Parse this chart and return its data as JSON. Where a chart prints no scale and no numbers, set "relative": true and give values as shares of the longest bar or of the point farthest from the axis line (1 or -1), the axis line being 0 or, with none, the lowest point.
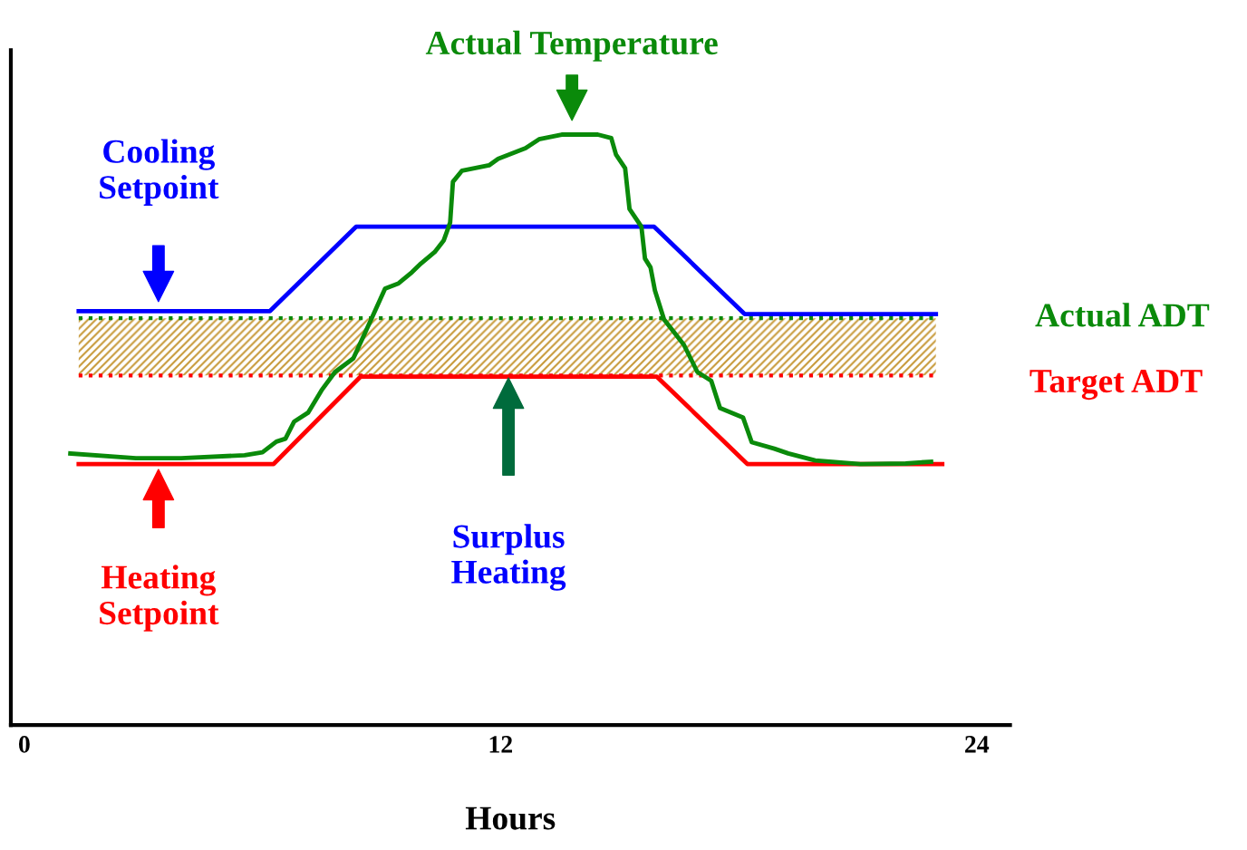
{
  "chart_data": {
    "type": "line",
    "relative": true,
    "xlabel": "Hours",
    "xlim": [
      -0.34,
      24.84
    ],
    "xticks": [
      0,
      12,
      24
    ],
    "grid": false,
    "marker": "none",
    "line_style": "solid",
    "series": [
      {
        "name": "Cooling Setpoint",
        "color": "#0000ff",
        "x": [
          1.37,
          6.19,
          8.36,
          15.87,
          18.15,
          22.97
        ],
        "values": [
          0.701,
          0.701,
          0.844,
          0.844,
          0.696,
          0.696
        ]
      },
      {
        "name": "Heating Setpoint",
        "color": "#ff0000",
        "x": [
          1.37,
          6.28,
          8.47,
          15.94,
          18.22,
          23.13
        ],
        "values": [
          0.442,
          0.442,
          0.59,
          0.59,
          0.442,
          0.442
        ]
      },
      {
        "name": "Actual Temperature",
        "color": "#0a8a0a",
        "x": [
          1.16,
          2.81,
          3.95,
          5.55,
          6.0,
          6.35,
          6.58,
          6.8,
          7.15,
          7.49,
          7.83,
          8.29,
          8.74,
          9.09,
          9.43,
          9.77,
          10.0,
          10.34,
          10.57,
          10.73,
          10.8,
          11.03,
          11.71,
          11.94,
          12.63,
          12.97,
          13.54,
          14.45,
          14.79,
          14.91,
          15.14,
          15.25,
          15.55,
          15.64,
          15.78,
          15.89,
          16.12,
          16.62,
          16.96,
          17.31,
          17.53,
          18.11,
          18.33,
          18.9,
          19.25,
          19.93,
          21.07,
          22.21,
          22.85
        ],
        "values": [
          0.46,
          0.452,
          0.452,
          0.457,
          0.462,
          0.48,
          0.485,
          0.514,
          0.529,
          0.567,
          0.598,
          0.621,
          0.687,
          0.739,
          0.748,
          0.767,
          0.782,
          0.801,
          0.821,
          0.851,
          0.92,
          0.939,
          0.948,
          0.959,
          0.977,
          0.992,
          1.0,
          1.0,
          0.994,
          0.966,
          0.943,
          0.874,
          0.844,
          0.79,
          0.775,
          0.736,
          0.687,
          0.644,
          0.598,
          0.583,
          0.537,
          0.521,
          0.479,
          0.468,
          0.46,
          0.448,
          0.442,
          0.443,
          0.446
        ]
      }
    ],
    "ref_lines": [
      {
        "axis": "y",
        "value": 0.689,
        "label": "Actual ADT",
        "color": "#0a8a0a",
        "line_style": "dotted"
      },
      {
        "axis": "y",
        "value": 0.592,
        "label": "Target ADT",
        "color": "#ff0000",
        "line_style": "dotted"
      }
    ],
    "bands": [
      {
        "axis": "y",
        "from": 0.592,
        "to": 0.689,
        "color": "#c89b3c"
      }
    ],
    "annotations": [
      "Surplus Heating"
    ]
  }
}
